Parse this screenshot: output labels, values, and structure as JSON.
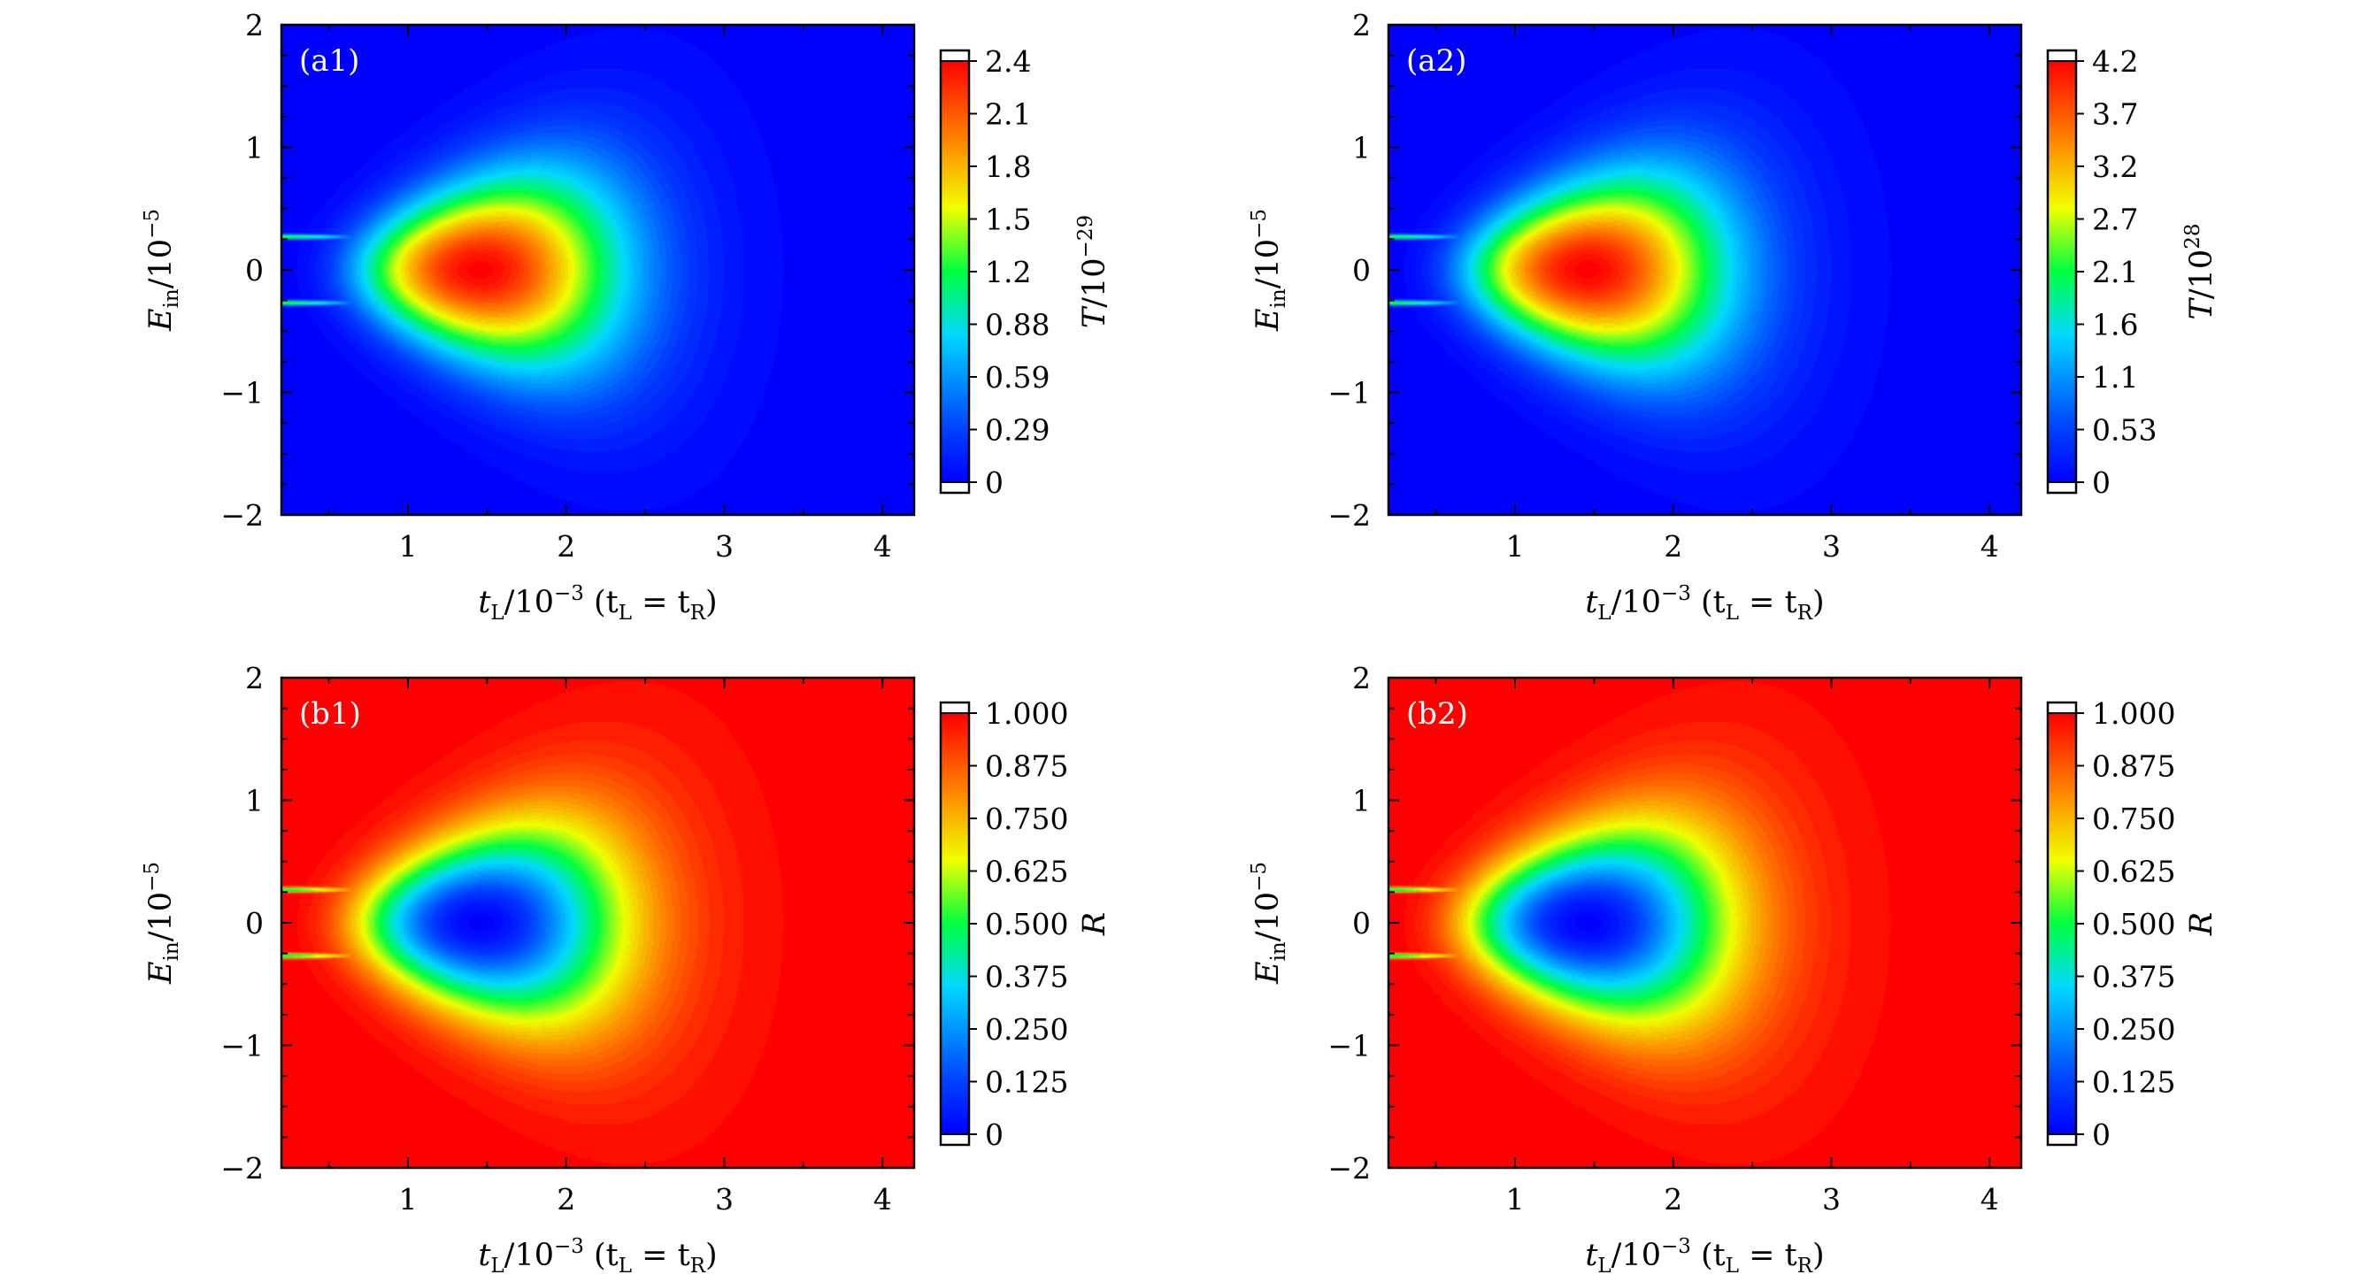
{
  "chart_data": [
    {
      "type": "heatmap",
      "panel_label": "(a1)",
      "xlabel_main": "t",
      "xlabel_main_sub": "L",
      "xlabel_exp": "/10",
      "xlabel_sup": "−3",
      "xlabel_paren_a": " (t",
      "xlabel_paren_a_sub": "L",
      "xlabel_paren_eq": " = t",
      "xlabel_paren_b_sub": "R",
      "xlabel_close": ")",
      "ylabel_main": "E",
      "ylabel_sub": "in",
      "ylabel_exp": "/10",
      "ylabel_sup": "−5",
      "x_ticks": [
        "1",
        "2",
        "3",
        "4"
      ],
      "y_ticks": [
        "2",
        "1",
        "0",
        "−1",
        "−2"
      ],
      "xlim": [
        0.2,
        4.2
      ],
      "ylim": [
        -2,
        2
      ],
      "quantity": "T",
      "colorbar_label": "T",
      "colorbar_label_exp": "/10",
      "colorbar_label_sup": "−29",
      "colorbar_ticks": [
        "2.4",
        "2.1",
        "1.8",
        "1.5",
        "1.2",
        "0.88",
        "0.59",
        "0.29",
        "0"
      ],
      "colorbar_max": 2.4
    },
    {
      "type": "heatmap",
      "panel_label": "(a2)",
      "xlabel_main": "t",
      "xlabel_main_sub": "L",
      "xlabel_exp": "/10",
      "xlabel_sup": "−3",
      "xlabel_paren_a": " (t",
      "xlabel_paren_a_sub": "L",
      "xlabel_paren_eq": " = t",
      "xlabel_paren_b_sub": "R",
      "xlabel_close": ")",
      "ylabel_main": "E",
      "ylabel_sub": "in",
      "ylabel_exp": "/10",
      "ylabel_sup": "−5",
      "x_ticks": [
        "1",
        "2",
        "3",
        "4"
      ],
      "y_ticks": [
        "2",
        "1",
        "0",
        "−1",
        "−2"
      ],
      "xlim": [
        0.2,
        4.2
      ],
      "ylim": [
        -2,
        2
      ],
      "quantity": "T",
      "colorbar_label": "T",
      "colorbar_label_exp": "/10",
      "colorbar_label_sup": "28",
      "colorbar_ticks": [
        "4.2",
        "3.7",
        "3.2",
        "2.7",
        "2.1",
        "1.6",
        "1.1",
        "0.53",
        "0"
      ],
      "colorbar_max": 4.2
    },
    {
      "type": "heatmap",
      "panel_label": "(b1)",
      "xlabel_main": "t",
      "xlabel_main_sub": "L",
      "xlabel_exp": "/10",
      "xlabel_sup": "−3",
      "xlabel_paren_a": " (t",
      "xlabel_paren_a_sub": "L",
      "xlabel_paren_eq": " = t",
      "xlabel_paren_b_sub": "R",
      "xlabel_close": ")",
      "ylabel_main": "E",
      "ylabel_sub": "in",
      "ylabel_exp": "/10",
      "ylabel_sup": "−5",
      "x_ticks": [
        "1",
        "2",
        "3",
        "4"
      ],
      "y_ticks": [
        "2",
        "1",
        "0",
        "−1",
        "−2"
      ],
      "xlim": [
        0.2,
        4.2
      ],
      "ylim": [
        -2,
        2
      ],
      "quantity": "R",
      "colorbar_label": "R",
      "colorbar_label_exp": "",
      "colorbar_label_sup": "",
      "colorbar_ticks": [
        "1.000",
        "0.875",
        "0.750",
        "0.625",
        "0.500",
        "0.375",
        "0.250",
        "0.125",
        "0"
      ],
      "colorbar_max": 1.0
    },
    {
      "type": "heatmap",
      "panel_label": "(b2)",
      "xlabel_main": "t",
      "xlabel_main_sub": "L",
      "xlabel_exp": "/10",
      "xlabel_sup": "−3",
      "xlabel_paren_a": " (t",
      "xlabel_paren_a_sub": "L",
      "xlabel_paren_eq": " = t",
      "xlabel_paren_b_sub": "R",
      "xlabel_close": ")",
      "ylabel_main": "E",
      "ylabel_sub": "in",
      "ylabel_exp": "/10",
      "ylabel_sup": "−5",
      "x_ticks": [
        "1",
        "2",
        "3",
        "4"
      ],
      "y_ticks": [
        "2",
        "1",
        "0",
        "−1",
        "−2"
      ],
      "xlim": [
        0.2,
        4.2
      ],
      "ylim": [
        -2,
        2
      ],
      "quantity": "R",
      "colorbar_label": "R",
      "colorbar_label_exp": "",
      "colorbar_label_sup": "",
      "colorbar_ticks": [
        "1.000",
        "0.875",
        "0.750",
        "0.625",
        "0.500",
        "0.375",
        "0.250",
        "0.125",
        "0"
      ],
      "colorbar_max": 1.0
    }
  ]
}
